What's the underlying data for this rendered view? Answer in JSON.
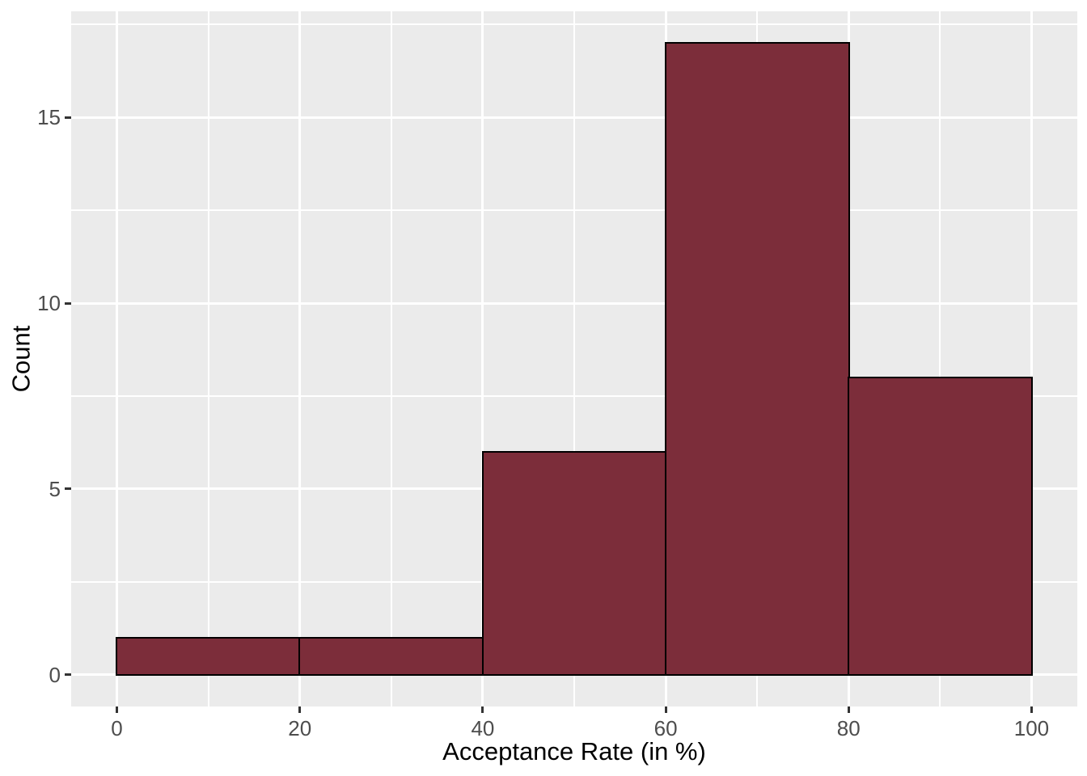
{
  "chart_data": {
    "type": "bar",
    "subtype": "histogram",
    "title": "",
    "xlabel": "Acceptance Rate (in %)",
    "ylabel": "Count",
    "bins": [
      {
        "x0": 0,
        "x1": 20,
        "count": 1
      },
      {
        "x0": 20,
        "x1": 40,
        "count": 1
      },
      {
        "x0": 40,
        "x1": 60,
        "count": 6
      },
      {
        "x0": 60,
        "x1": 80,
        "count": 17
      },
      {
        "x0": 80,
        "x1": 100,
        "count": 8
      }
    ],
    "x_ticks": [
      0,
      20,
      40,
      60,
      80,
      100
    ],
    "y_ticks": [
      0,
      5,
      10,
      15
    ],
    "x_minor_gridlines": [
      10,
      30,
      50,
      70,
      90
    ],
    "y_minor_gridlines": [
      2.5,
      7.5,
      12.5,
      17.5
    ],
    "xlim": [
      -5,
      105
    ],
    "ylim": [
      -0.85,
      17.85
    ],
    "grid": "on",
    "legend_position": "none",
    "colors": {
      "bar_fill": "#7C2D3A",
      "bar_stroke": "#000000",
      "panel_bg": "#EBEBEB",
      "gridline": "#FFFFFF",
      "tick_label": "#4D4D4D",
      "axis_title": "#000000",
      "tick_mark": "#333333",
      "outer_bg": "#FFFFFF"
    }
  }
}
